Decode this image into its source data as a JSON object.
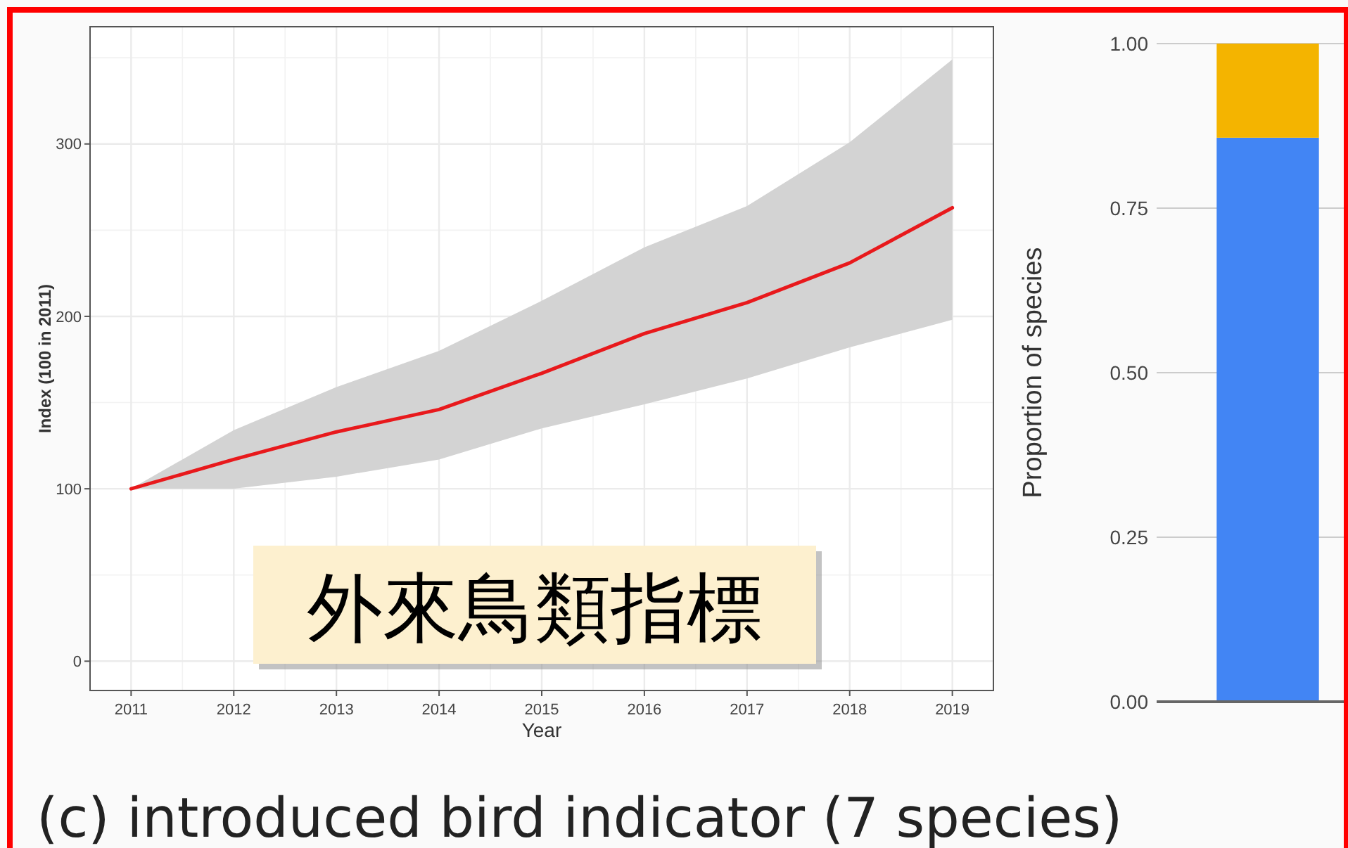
{
  "chart_data": [
    {
      "type": "line",
      "xlabel": "Year",
      "ylabel": "Index (100 in 2011)",
      "x": [
        2011,
        2012,
        2013,
        2014,
        2015,
        2016,
        2017,
        2018,
        2019
      ],
      "series": [
        {
          "color": "#e8191c",
          "values": [
            100,
            117,
            133,
            146,
            167,
            190,
            208,
            231,
            263
          ],
          "lower": [
            100,
            100,
            107,
            117,
            135,
            149,
            164,
            182,
            198
          ],
          "upper": [
            100,
            134,
            159,
            180,
            209,
            240,
            264,
            301,
            349
          ]
        }
      ],
      "xlim": [
        2010.6,
        2019.4
      ],
      "xticks": [
        2011,
        2012,
        2013,
        2014,
        2015,
        2016,
        2017,
        2018,
        2019
      ],
      "ylim": [
        -17,
        368
      ],
      "yticks": [
        0,
        100,
        200,
        300
      ],
      "grid": true,
      "annotations": [
        "外來鳥類指標",
        "(c) introduced bird indicator (7 species)"
      ]
    },
    {
      "type": "bar",
      "stacked": true,
      "ylabel": "Proportion of species",
      "categories": [
        null
      ],
      "series": [
        {
          "color": "#4285f4",
          "values": [
            0.857
          ]
        },
        {
          "color": "#f4b400",
          "values": [
            0.143
          ]
        }
      ],
      "ylim": [
        0,
        1
      ],
      "yticks": [
        {
          "value": 0,
          "label": "0.00"
        },
        {
          "value": 0.25,
          "label": "0.25"
        },
        {
          "value": 0.5,
          "label": "0.50"
        },
        {
          "value": 0.75,
          "label": "0.75"
        },
        {
          "value": 1,
          "label": "1.00"
        }
      ],
      "grid": "y"
    }
  ]
}
